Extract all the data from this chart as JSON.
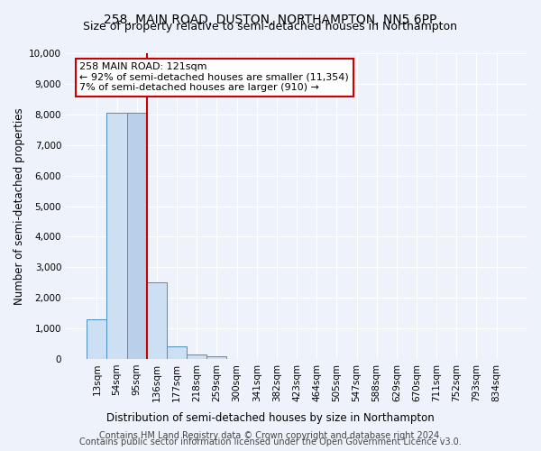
{
  "title": "258, MAIN ROAD, DUSTON, NORTHAMPTON, NN5 6PP",
  "subtitle": "Size of property relative to semi-detached houses in Northampton",
  "xlabel": "Distribution of semi-detached houses by size in Northampton",
  "ylabel": "Number of semi-detached properties",
  "footer_line1": "Contains HM Land Registry data © Crown copyright and database right 2024.",
  "footer_line2": "Contains public sector information licensed under the Open Government Licence v3.0.",
  "bin_labels": [
    "13sqm",
    "54sqm",
    "95sqm",
    "136sqm",
    "177sqm",
    "218sqm",
    "259sqm",
    "300sqm",
    "341sqm",
    "382sqm",
    "423sqm",
    "464sqm",
    "505sqm",
    "547sqm",
    "588sqm",
    "629sqm",
    "670sqm",
    "711sqm",
    "752sqm",
    "793sqm",
    "834sqm"
  ],
  "bar_values": [
    1300,
    8050,
    8050,
    2500,
    400,
    150,
    100,
    0,
    0,
    0,
    0,
    0,
    0,
    0,
    0,
    0,
    0,
    0,
    0,
    0,
    0
  ],
  "highlight_bin": 2,
  "highlight_color": "#b8d0ea",
  "normal_color": "#cddff2",
  "bar_edge_color": "#4d8fbf",
  "property_label": "258 MAIN ROAD: 121sqm",
  "annotation_line1": "← 92% of semi-detached houses are smaller (11,354)",
  "annotation_line2": "7% of semi-detached houses are larger (910) →",
  "annotation_box_color": "#ffffff",
  "annotation_box_edge": "#cc0000",
  "vline_color": "#cc0000",
  "vline_bin": 2,
  "ylim": [
    0,
    10000
  ],
  "yticks": [
    0,
    1000,
    2000,
    3000,
    4000,
    5000,
    6000,
    7000,
    8000,
    9000,
    10000
  ],
  "bg_color": "#eef3fb",
  "plot_bg_color": "#eef3fb",
  "grid_color": "#ffffff",
  "title_fontsize": 10,
  "subtitle_fontsize": 9,
  "axis_label_fontsize": 8.5,
  "tick_fontsize": 7.5,
  "footer_fontsize": 7
}
